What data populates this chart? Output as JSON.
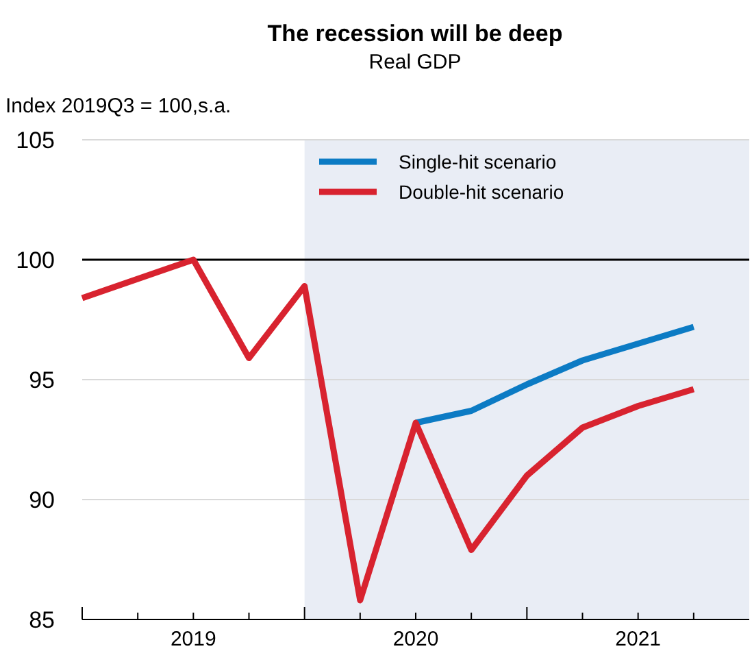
{
  "chart_data": {
    "type": "line",
    "title": "The recession will be deep",
    "subtitle": "Real GDP",
    "ylabel": "Index 2019Q3 = 100,s.a.",
    "x": [
      2019,
      2019.5,
      2019.75,
      2020,
      2020.25,
      2020.5,
      2020.75,
      2021,
      2021.25,
      2021.5,
      2021.75
    ],
    "series": [
      {
        "name": "Single-hit scenario",
        "color": "#0c7bc4",
        "values": [
          null,
          null,
          null,
          null,
          null,
          93.2,
          93.7,
          94.8,
          95.8,
          96.5,
          97.2
        ]
      },
      {
        "name": "Double-hit scenario",
        "color": "#d8232f",
        "values": [
          98.4,
          100,
          95.9,
          98.9,
          85.8,
          93.2,
          87.9,
          91.0,
          93.0,
          93.9,
          94.6
        ]
      }
    ],
    "xlim": [
      2019,
      2022
    ],
    "xticks": [
      {
        "value": 2019,
        "label": null
      },
      {
        "value": 2019.25,
        "label": null
      },
      {
        "value": 2019.5,
        "label": "2019"
      },
      {
        "value": 2019.75,
        "label": null
      },
      {
        "value": 2020,
        "label": null
      },
      {
        "value": 2020.25,
        "label": null
      },
      {
        "value": 2020.5,
        "label": "2020"
      },
      {
        "value": 2020.75,
        "label": null
      },
      {
        "value": 2021,
        "label": null
      },
      {
        "value": 2021.25,
        "label": null
      },
      {
        "value": 2021.5,
        "label": "2021"
      },
      {
        "value": 2021.75,
        "label": null
      }
    ],
    "ylim": [
      85,
      105
    ],
    "yticks": [
      85,
      90,
      95,
      100,
      105
    ],
    "grid": "y",
    "legend": "top",
    "line_style": "solid",
    "marker": "none",
    "ref_lines": [
      {
        "axis": "y",
        "value": 100,
        "label": null,
        "color": "#000000"
      }
    ],
    "bands": [
      {
        "axis": "x",
        "from": 2020,
        "to": 2022,
        "label": null,
        "color": "#e9edf5"
      }
    ]
  }
}
